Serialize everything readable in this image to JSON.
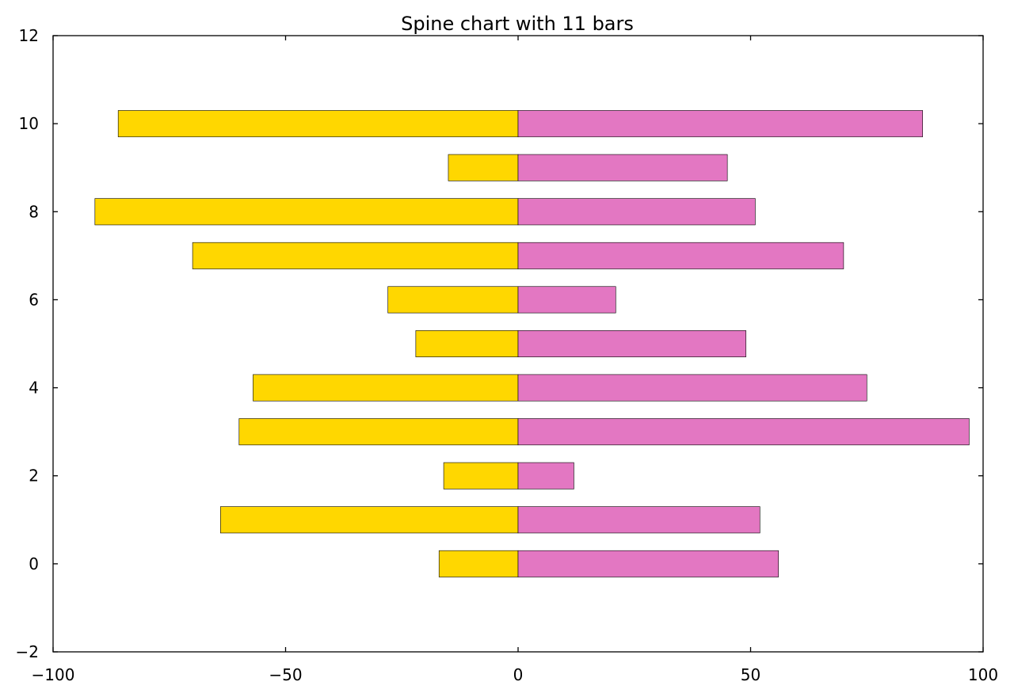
{
  "chart_data": {
    "type": "bar",
    "orientation": "horizontal",
    "stacking": "diverging",
    "title": "Spine chart with 11 bars",
    "xlabel": "",
    "ylabel": "",
    "xlim": [
      -100,
      100
    ],
    "ylim": [
      -2,
      12
    ],
    "xticks": [
      -100,
      -50,
      0,
      50,
      100
    ],
    "xtick_labels": [
      "−100",
      "−50",
      "0",
      "50",
      "100"
    ],
    "yticks": [
      -2,
      0,
      2,
      4,
      6,
      8,
      10,
      12
    ],
    "ytick_labels": [
      "−2",
      "0",
      "2",
      "4",
      "6",
      "8",
      "10",
      "12"
    ],
    "grid": false,
    "legend": "none",
    "categories": [
      0,
      1,
      2,
      3,
      4,
      5,
      6,
      7,
      8,
      9,
      10
    ],
    "series": [
      {
        "color": "#ffd700",
        "values": [
          -17,
          -64,
          -16,
          -60,
          -57,
          -22,
          -28,
          -70,
          -91,
          -15,
          -86
        ]
      },
      {
        "color": "#e377c2",
        "values": [
          56,
          52,
          12,
          97,
          75,
          49,
          21,
          70,
          51,
          45,
          87
        ]
      }
    ]
  }
}
